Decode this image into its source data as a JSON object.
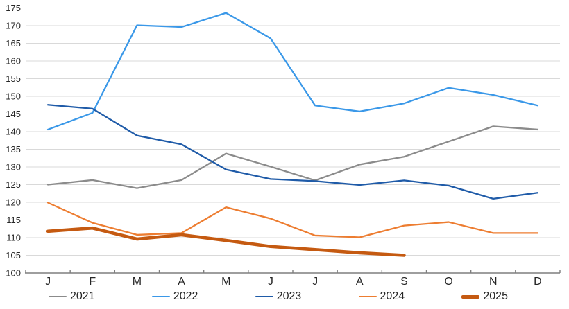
{
  "chart_data": {
    "type": "line",
    "title": "",
    "xlabel": "",
    "ylabel": "",
    "categories": [
      "J",
      "F",
      "M",
      "A",
      "M",
      "J",
      "J",
      "A",
      "S",
      "O",
      "N",
      "D"
    ],
    "y_ticks": [
      100,
      105,
      110,
      115,
      120,
      125,
      130,
      135,
      140,
      145,
      150,
      155,
      160,
      165,
      170,
      175
    ],
    "ylim": [
      100,
      175
    ],
    "grid": "horizontal",
    "legend_position": "bottom",
    "axis_color": "#7f7f7f",
    "gridline_color": "#d9d9d9",
    "series": [
      {
        "name": "2021",
        "color": "#8b8b8b",
        "thick": false,
        "values": [
          125.0,
          126.3,
          124.0,
          126.3,
          133.8,
          130.1,
          126.2,
          130.7,
          132.9,
          137.2,
          141.5,
          140.6
        ]
      },
      {
        "name": "2022",
        "color": "#3a98e8",
        "thick": false,
        "values": [
          140.6,
          145.3,
          170.1,
          169.6,
          173.6,
          166.4,
          147.4,
          145.7,
          148.0,
          152.4,
          150.4,
          147.4
        ]
      },
      {
        "name": "2023",
        "color": "#1f5ba8",
        "thick": false,
        "values": [
          147.6,
          146.5,
          138.9,
          136.4,
          129.3,
          126.6,
          126.0,
          124.9,
          126.2,
          124.7,
          121.0,
          122.7
        ]
      },
      {
        "name": "2024",
        "color": "#ed7d31",
        "thick": false,
        "values": [
          119.9,
          114.2,
          110.8,
          111.3,
          118.6,
          115.4,
          110.6,
          110.1,
          113.4,
          114.4,
          111.3,
          111.3
        ]
      },
      {
        "name": "2025",
        "color": "#c55a11",
        "thick": true,
        "values": [
          111.8,
          112.7,
          109.6,
          110.8,
          109.2,
          107.5,
          106.6,
          105.7,
          105.0
        ]
      }
    ]
  }
}
